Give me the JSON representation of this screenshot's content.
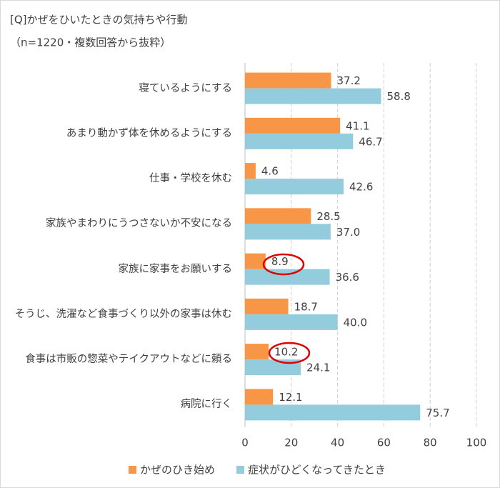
{
  "chart_data": {
    "type": "bar",
    "orientation": "horizontal",
    "title": "[Q]かぜをひいたときの気持ちや行動",
    "subtitle": "（n=1220・複数回答から抜粋）",
    "categories": [
      "寝ているようにする",
      "あまり動かず体を休めるようにする",
      "仕事・学校を休む",
      "家族やまわりにうつさないか不安になる",
      "家族に家事をお願いする",
      "そうじ、洗濯など食事づくり以外の家事は休む",
      "食事は市販の惣菜やテイクアウトなどに頼る",
      "病院に行く"
    ],
    "series": [
      {
        "name": "かぜのひき始め",
        "color": "#f79646",
        "values": [
          37.2,
          41.1,
          4.6,
          28.5,
          8.9,
          18.7,
          10.2,
          12.1
        ]
      },
      {
        "name": "症状がひどくなってきたとき",
        "color": "#93cddd",
        "values": [
          58.8,
          46.7,
          42.6,
          37.0,
          36.6,
          40.0,
          24.1,
          75.7
        ],
        "value_labels": [
          "58.8",
          "46.7",
          "42.6",
          "37.0",
          "36.6",
          "40.0",
          "24.1",
          "75.7"
        ]
      }
    ],
    "xlim": [
      0,
      100
    ],
    "xticks": [
      0,
      20,
      40,
      60,
      80,
      100
    ],
    "grid": true,
    "legend": "bottom"
  }
}
